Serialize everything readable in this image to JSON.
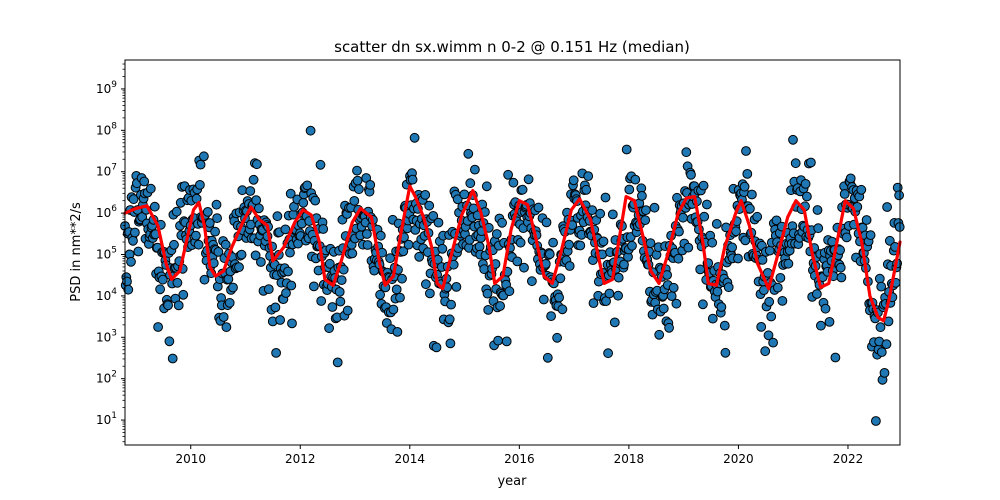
{
  "chart_data": {
    "type": "scatter",
    "title": "scatter dn sx.wimm n 0-2 @ 0.151 Hz (median)",
    "xlabel": "year",
    "ylabel": "PSD in nm**2/s",
    "xlim": [
      2008.8,
      2022.95
    ],
    "ylim": [
      2.5,
      5000000000
    ],
    "yscale": "log",
    "grid": false,
    "legend": "none",
    "x_ticks": [
      2010,
      2012,
      2014,
      2016,
      2018,
      2020,
      2022
    ],
    "x_tick_labels": [
      "2010",
      "2012",
      "2014",
      "2016",
      "2018",
      "2020",
      "2022"
    ],
    "y_tick_exponents": [
      1,
      2,
      3,
      4,
      5,
      6,
      7,
      8,
      9
    ],
    "colors": {
      "points": "#1f77b4",
      "point_edge": "#000000",
      "median_line": "#ff0000"
    },
    "series": [
      {
        "kind": "scatter",
        "description": "individual PSD values",
        "x_start": 2008.8,
        "x_end": 2022.95,
        "x_step": 0.0121,
        "seasonal_winter_log10": 6.2,
        "seasonal_summer_log10": 4.3,
        "scatter_spread_log10": 0.75
      },
      {
        "kind": "line",
        "description": "median",
        "points": [
          [
            2008.8,
            1000000
          ],
          [
            2009.0,
            1300000
          ],
          [
            2009.2,
            1500000
          ],
          [
            2009.4,
            500000
          ],
          [
            2009.55,
            60000
          ],
          [
            2009.65,
            25000
          ],
          [
            2009.8,
            40000
          ],
          [
            2009.95,
            300000
          ],
          [
            2010.05,
            1200000
          ],
          [
            2010.15,
            1800000
          ],
          [
            2010.25,
            500000
          ],
          [
            2010.35,
            50000
          ],
          [
            2010.45,
            30000
          ],
          [
            2010.6,
            40000
          ],
          [
            2010.75,
            150000
          ],
          [
            2010.95,
            600000
          ],
          [
            2011.1,
            1400000
          ],
          [
            2011.25,
            700000
          ],
          [
            2011.4,
            500000
          ],
          [
            2011.5,
            70000
          ],
          [
            2011.7,
            150000
          ],
          [
            2011.9,
            600000
          ],
          [
            2012.05,
            1200000
          ],
          [
            2012.2,
            900000
          ],
          [
            2012.35,
            200000
          ],
          [
            2012.45,
            25000
          ],
          [
            2012.6,
            18000
          ],
          [
            2012.75,
            70000
          ],
          [
            2012.95,
            600000
          ],
          [
            2013.1,
            1300000
          ],
          [
            2013.3,
            800000
          ],
          [
            2013.45,
            60000
          ],
          [
            2013.55,
            18000
          ],
          [
            2013.7,
            30000
          ],
          [
            2013.85,
            400000
          ],
          [
            2014.0,
            4500000
          ],
          [
            2014.1,
            2500000
          ],
          [
            2014.25,
            800000
          ],
          [
            2014.4,
            150000
          ],
          [
            2014.5,
            20000
          ],
          [
            2014.6,
            15000
          ],
          [
            2014.75,
            90000
          ],
          [
            2014.95,
            900000
          ],
          [
            2015.15,
            3500000
          ],
          [
            2015.3,
            1000000
          ],
          [
            2015.45,
            150000
          ],
          [
            2015.55,
            20000
          ],
          [
            2015.7,
            30000
          ],
          [
            2015.85,
            400000
          ],
          [
            2016.0,
            2000000
          ],
          [
            2016.15,
            1600000
          ],
          [
            2016.3,
            250000
          ],
          [
            2016.45,
            30000
          ],
          [
            2016.6,
            20000
          ],
          [
            2016.75,
            100000
          ],
          [
            2016.95,
            1200000
          ],
          [
            2017.1,
            2200000
          ],
          [
            2017.3,
            700000
          ],
          [
            2017.45,
            80000
          ],
          [
            2017.55,
            20000
          ],
          [
            2017.7,
            25000
          ],
          [
            2017.85,
            400000
          ],
          [
            2017.95,
            2500000
          ],
          [
            2018.1,
            2000000
          ],
          [
            2018.25,
            300000
          ],
          [
            2018.4,
            40000
          ],
          [
            2018.55,
            20000
          ],
          [
            2018.7,
            90000
          ],
          [
            2018.9,
            1000000
          ],
          [
            2019.05,
            2300000
          ],
          [
            2019.2,
            2500000
          ],
          [
            2019.35,
            200000
          ],
          [
            2019.45,
            20000
          ],
          [
            2019.6,
            18000
          ],
          [
            2019.75,
            150000
          ],
          [
            2019.95,
            1000000
          ],
          [
            2020.05,
            2000000
          ],
          [
            2020.2,
            500000
          ],
          [
            2020.35,
            60000
          ],
          [
            2020.55,
            15000
          ],
          [
            2020.7,
            80000
          ],
          [
            2020.9,
            800000
          ],
          [
            2021.05,
            2000000
          ],
          [
            2021.2,
            1200000
          ],
          [
            2021.35,
            100000
          ],
          [
            2021.5,
            16000
          ],
          [
            2021.65,
            20000
          ],
          [
            2021.8,
            200000
          ],
          [
            2021.95,
            2000000
          ],
          [
            2022.1,
            1300000
          ],
          [
            2022.25,
            200000
          ],
          [
            2022.4,
            10000
          ],
          [
            2022.55,
            3000
          ],
          [
            2022.65,
            2500
          ],
          [
            2022.75,
            8000
          ],
          [
            2022.95,
            200000
          ]
        ]
      }
    ]
  }
}
